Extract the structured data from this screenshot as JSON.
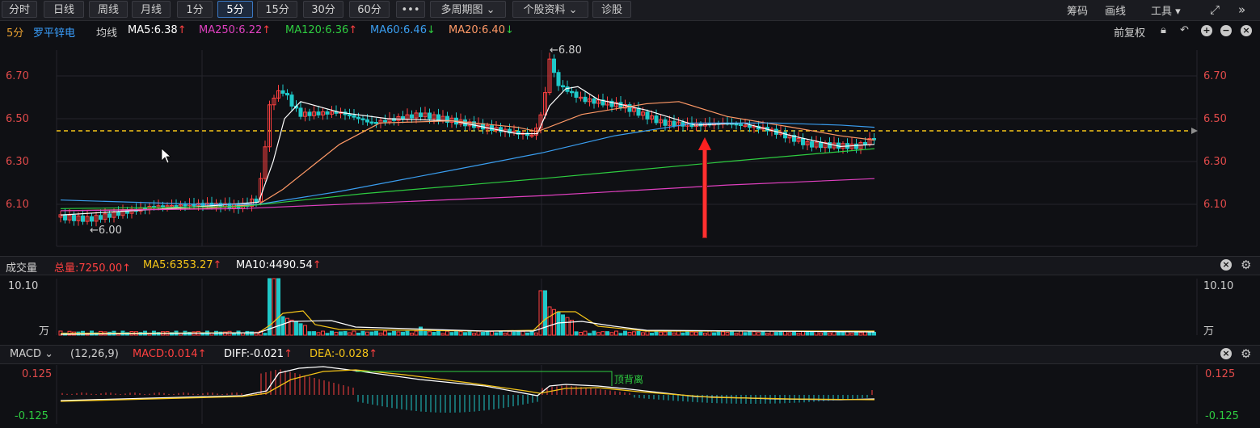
{
  "toolbar": {
    "periods": [
      "分时",
      "日线",
      "周线",
      "月线",
      "1分",
      "5分",
      "15分",
      "30分",
      "60分"
    ],
    "more": "•••",
    "multi": "多周期图",
    "info": "个股资料",
    "diag": "诊股",
    "right": [
      "筹码",
      "画线",
      "工具"
    ],
    "active": "5分"
  },
  "price_header": {
    "period": "5分",
    "name": "罗平锌电",
    "avg_label": "均线",
    "ma5": "MA5:6.38",
    "ma250": "MA250:6.22",
    "ma120": "MA120:6.36",
    "ma60": "MA60:6.46",
    "ma20": "MA20:6.40",
    "adjust": "前复权"
  },
  "price_axis": [
    "6.70",
    "6.50",
    "6.30",
    "6.10"
  ],
  "annotations": {
    "high": "←6.80",
    "low": "←6.00"
  },
  "volume_header": {
    "title": "成交量",
    "total": "总量:7250.00",
    "ma5": "MA5:6353.27",
    "ma10": "MA10:4490.54",
    "axis_top": "10.10",
    "axis_unit": "万"
  },
  "macd_header": {
    "title": "MACD",
    "params": "(12,26,9)",
    "macd": "MACD:0.014",
    "diff": "DIFF:-0.021",
    "dea": "DEA:-0.028",
    "axis_top": "0.125",
    "axis_bottom": "-0.125",
    "divergence": "顶背离"
  },
  "colors": {
    "up": "#ff4040",
    "down": "#1fc8c8",
    "ma5": "#ffffff",
    "ma20": "#ff9966",
    "ma60": "#3a9ef0",
    "ma120": "#2ecc40",
    "ma250": "#e040c0",
    "dea": "#f5c518"
  }
}
